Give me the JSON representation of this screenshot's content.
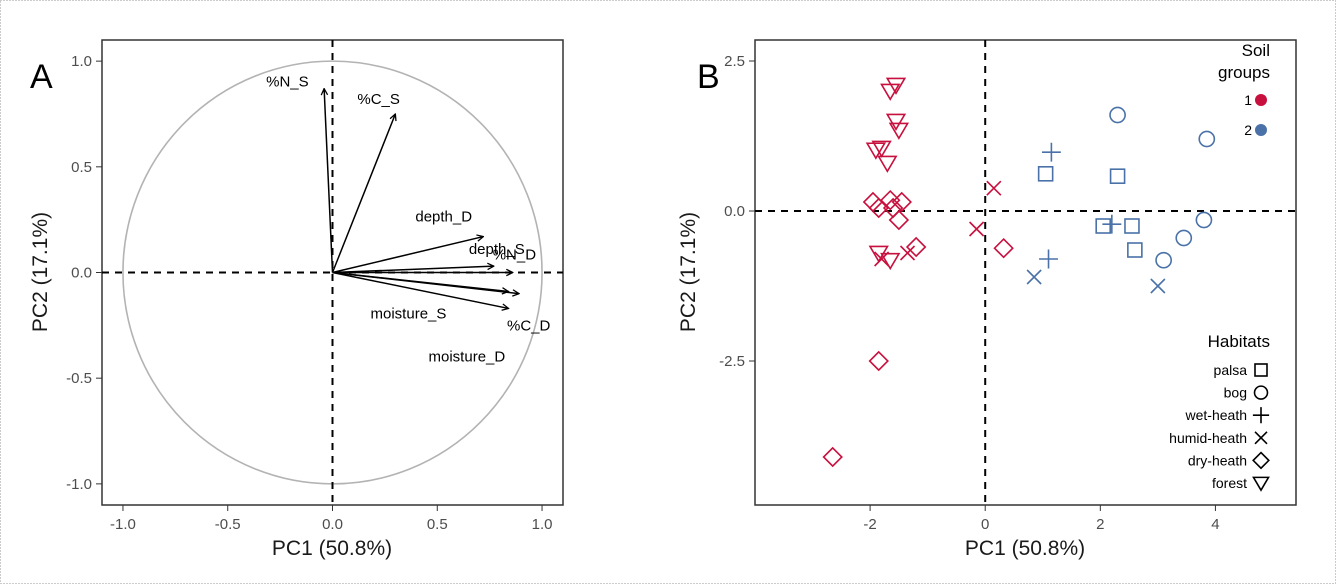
{
  "chart_data": [
    {
      "type": "scatter",
      "subtype": "pca-correlation-circle",
      "panel_label": "A",
      "xlabel": "PC1 (50.8%)",
      "ylabel": "PC2 (17.1%)",
      "xlim": [
        -1.1,
        1.1
      ],
      "ylim": [
        -1.1,
        1.1
      ],
      "x_ticks": [
        -1.0,
        -0.5,
        0.0,
        0.5,
        1.0
      ],
      "x_tick_labels": [
        "-1.0",
        "-0.5",
        "0.0",
        "0.5",
        "1.0"
      ],
      "y_ticks": [
        -1.0,
        -0.5,
        0.0,
        0.5,
        1.0
      ],
      "y_tick_labels": [
        "-1.0",
        "-0.5",
        "0.0",
        "0.5",
        "1.0"
      ],
      "grid": false,
      "unit_circle": true,
      "reference_lines": {
        "x": 0,
        "y": 0
      },
      "vectors": [
        {
          "name": "%N_S",
          "x": -0.04,
          "y": 0.87
        },
        {
          "name": "%C_S",
          "x": 0.3,
          "y": 0.75
        },
        {
          "name": "depth_D",
          "x": 0.72,
          "y": 0.17
        },
        {
          "name": "depth_S",
          "x": 0.77,
          "y": 0.03
        },
        {
          "name": "%N_D",
          "x": 0.86,
          "y": 0.0
        },
        {
          "name": "moisture_S",
          "x": 0.84,
          "y": -0.09
        },
        {
          "name": "%C_D",
          "x": 0.89,
          "y": -0.1
        },
        {
          "name": "moisture_D",
          "x": 0.84,
          "y": -0.17
        }
      ]
    },
    {
      "type": "scatter",
      "subtype": "pca-scores",
      "panel_label": "B",
      "xlabel": "PC1 (50.8%)",
      "ylabel": "PC2 (17.1%)",
      "xlim": [
        -4.0,
        5.4
      ],
      "ylim": [
        -4.9,
        2.85
      ],
      "x_ticks": [
        -2,
        0,
        2,
        4
      ],
      "x_tick_labels": [
        "-2",
        "0",
        "2",
        "4"
      ],
      "y_ticks": [
        -2.5,
        0.0,
        2.5
      ],
      "y_tick_labels": [
        "-2.5",
        "0.0",
        "2.5"
      ],
      "grid": false,
      "reference_lines": {
        "x": 0,
        "y": 0
      },
      "legend_color": {
        "title_line1": "Soil",
        "title_line2": "groups",
        "position": "top-right",
        "entries": [
          {
            "label": "1",
            "group": 1,
            "color": "#c8103e"
          },
          {
            "label": "2",
            "group": 2,
            "color": "#4a72a8"
          }
        ]
      },
      "legend_shape": {
        "title": "Habitats",
        "position": "bottom-right",
        "entries": [
          {
            "label": "palsa",
            "shape": "square"
          },
          {
            "label": "bog",
            "shape": "circle"
          },
          {
            "label": "wet-heath",
            "shape": "plus"
          },
          {
            "label": "humid-heath",
            "shape": "cross"
          },
          {
            "label": "dry-heath",
            "shape": "diamond"
          },
          {
            "label": "forest",
            "shape": "triangle-down"
          }
        ]
      },
      "points": [
        {
          "x": -1.55,
          "y": 2.1,
          "habitat": "forest",
          "group": 1
        },
        {
          "x": -1.65,
          "y": 2.0,
          "habitat": "forest",
          "group": 1
        },
        {
          "x": -1.55,
          "y": 1.5,
          "habitat": "forest",
          "group": 1
        },
        {
          "x": -1.5,
          "y": 1.35,
          "habitat": "forest",
          "group": 1
        },
        {
          "x": -1.8,
          "y": 1.05,
          "habitat": "forest",
          "group": 1
        },
        {
          "x": -1.9,
          "y": 1.02,
          "habitat": "forest",
          "group": 1
        },
        {
          "x": -1.7,
          "y": 0.8,
          "habitat": "forest",
          "group": 1
        },
        {
          "x": -1.85,
          "y": -0.7,
          "habitat": "forest",
          "group": 1
        },
        {
          "x": -1.65,
          "y": -0.82,
          "habitat": "forest",
          "group": 1
        },
        {
          "x": -1.95,
          "y": 0.15,
          "habitat": "dry-heath",
          "group": 1
        },
        {
          "x": -1.85,
          "y": 0.05,
          "habitat": "dry-heath",
          "group": 1
        },
        {
          "x": -1.65,
          "y": 0.18,
          "habitat": "dry-heath",
          "group": 1
        },
        {
          "x": -1.6,
          "y": 0.05,
          "habitat": "dry-heath",
          "group": 1
        },
        {
          "x": -1.45,
          "y": 0.15,
          "habitat": "dry-heath",
          "group": 1
        },
        {
          "x": -1.5,
          "y": -0.15,
          "habitat": "dry-heath",
          "group": 1
        },
        {
          "x": -1.2,
          "y": -0.6,
          "habitat": "dry-heath",
          "group": 1
        },
        {
          "x": 0.32,
          "y": -0.62,
          "habitat": "dry-heath",
          "group": 1
        },
        {
          "x": -1.85,
          "y": -2.5,
          "habitat": "dry-heath",
          "group": 1
        },
        {
          "x": -2.65,
          "y": -4.1,
          "habitat": "dry-heath",
          "group": 1
        },
        {
          "x": -1.8,
          "y": -0.8,
          "habitat": "humid-heath",
          "group": 1
        },
        {
          "x": -1.35,
          "y": -0.7,
          "habitat": "humid-heath",
          "group": 1
        },
        {
          "x": -0.15,
          "y": -0.3,
          "habitat": "humid-heath",
          "group": 1
        },
        {
          "x": 0.15,
          "y": 0.38,
          "habitat": "humid-heath",
          "group": 1
        },
        {
          "x": 1.05,
          "y": 0.62,
          "habitat": "palsa",
          "group": 2
        },
        {
          "x": 2.3,
          "y": 0.58,
          "habitat": "palsa",
          "group": 2
        },
        {
          "x": 2.05,
          "y": -0.25,
          "habitat": "palsa",
          "group": 2
        },
        {
          "x": 2.55,
          "y": -0.25,
          "habitat": "palsa",
          "group": 2
        },
        {
          "x": 2.6,
          "y": -0.65,
          "habitat": "palsa",
          "group": 2
        },
        {
          "x": 2.3,
          "y": 1.6,
          "habitat": "bog",
          "group": 2
        },
        {
          "x": 3.85,
          "y": 1.2,
          "habitat": "bog",
          "group": 2
        },
        {
          "x": 3.45,
          "y": -0.45,
          "habitat": "bog",
          "group": 2
        },
        {
          "x": 3.8,
          "y": -0.15,
          "habitat": "bog",
          "group": 2
        },
        {
          "x": 3.1,
          "y": -0.82,
          "habitat": "bog",
          "group": 2
        },
        {
          "x": 1.15,
          "y": 0.98,
          "habitat": "wet-heath",
          "group": 2
        },
        {
          "x": 2.2,
          "y": -0.22,
          "habitat": "wet-heath",
          "group": 2
        },
        {
          "x": 1.1,
          "y": -0.8,
          "habitat": "wet-heath",
          "group": 2
        },
        {
          "x": 0.85,
          "y": -1.1,
          "habitat": "humid-heath",
          "group": 2
        },
        {
          "x": 3.0,
          "y": -1.25,
          "habitat": "humid-heath",
          "group": 2
        }
      ]
    }
  ]
}
